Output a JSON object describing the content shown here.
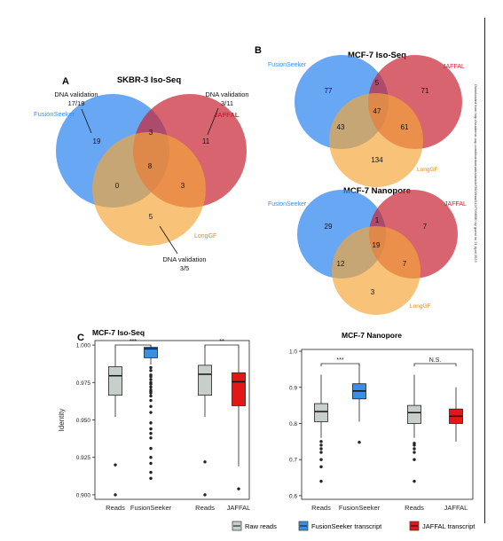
{
  "panel_a": {
    "letter": "A",
    "title": "SKBR-3 Iso-Seq",
    "labels": {
      "fusionseeker": "FusionSeeker",
      "jaffal": "JAFFAL",
      "longgf": "LongGF"
    },
    "counts": {
      "fs_only": "19",
      "fs_jaffal": "3",
      "jaffal_only": "11",
      "all": "8",
      "fs_longgf": "0",
      "jaffal_longgf": "3",
      "longgf_only": "5"
    },
    "callouts": [
      {
        "text": "DNA validation",
        "value": "17/19"
      },
      {
        "text": "DNA validation",
        "value": "3/11"
      },
      {
        "text": "DNA validation",
        "value": "3/5"
      }
    ]
  },
  "panel_b": {
    "letter": "B",
    "top": {
      "title": "MCF-7 Iso-Seq",
      "labels": {
        "fusionseeker": "FusionSeeker",
        "jaffal": "JAFFAL",
        "longgf": "LongGF"
      },
      "counts": {
        "fs_only": "77",
        "fs_jaffal": "5",
        "jaffal_only": "71",
        "all": "47",
        "fs_longgf": "43",
        "jaffal_longgf": "61",
        "longgf_only": "134"
      }
    },
    "bottom": {
      "title": "MCF-7 Nanopore",
      "labels": {
        "fusionseeker": "FusionSeeker",
        "jaffal": "JAFFAL",
        "longgf": "LongGF"
      },
      "counts": {
        "fs_only": "29",
        "fs_jaffal": "1",
        "jaffal_only": "7",
        "all": "19",
        "fs_longgf": "12",
        "jaffal_longgf": "7",
        "longgf_only": "3"
      }
    }
  },
  "side_note": "Downloaded from http://academic.oup.com/bioinformatics/article/39/3/btad112/7058080 by guest on 21 April 2023",
  "panel_c": {
    "letter": "C",
    "legend": [
      {
        "label": "Raw reads",
        "color": "#c8cec9"
      },
      {
        "label": "FusionSeeker transcript",
        "color": "#3a8ee6"
      },
      {
        "label": "JAFFAL transcript",
        "color": "#e01818"
      }
    ]
  },
  "colors": {
    "fusionseeker": "#3d8ef0",
    "jaffal": "#c82838",
    "longgf": "#f5a53a",
    "raw": "#c8cec9",
    "fs_box": "#3a8ee6",
    "jaffal_box": "#e01818"
  },
  "chart_data": [
    {
      "type": "box",
      "title": "MCF-7 Iso-Seq",
      "ylabel": "Identity",
      "ylim": [
        0.897,
        1.003
      ],
      "yticks": [
        0.9,
        0.925,
        0.95,
        0.975,
        1.0
      ],
      "ytick_labels": [
        "0.900",
        "0.925",
        "0.950",
        "0.975",
        "1.000"
      ],
      "categories": [
        "Reads",
        "FusionSeeker",
        "Reads",
        "JAFFAL"
      ],
      "series": [
        {
          "fill": "#c8cec9",
          "whisker_low": 0.952,
          "q1": 0.9665,
          "median": 0.9795,
          "q3": 0.9855,
          "whisker_high": 0.999,
          "outliers_low": [
            0.9,
            0.92
          ]
        },
        {
          "fill": "#3a8ee6",
          "whisker_low": 0.987,
          "q1": 0.9915,
          "median": 0.9975,
          "q3": 0.9985,
          "whisker_high": 1.0,
          "outliers_low": [
            0.911,
            0.915,
            0.921,
            0.925,
            0.931,
            0.938,
            0.941,
            0.944,
            0.948,
            0.955,
            0.959,
            0.963,
            0.966,
            0.968,
            0.969,
            0.97,
            0.972,
            0.974,
            0.975,
            0.977,
            0.979,
            0.98,
            0.983,
            0.985
          ]
        },
        {
          "fill": "#c8cec9",
          "whisker_low": 0.952,
          "q1": 0.9665,
          "median": 0.9805,
          "q3": 0.9865,
          "whisker_high": 1.0,
          "outliers_low": [
            0.9,
            0.922
          ]
        },
        {
          "fill": "#e01818",
          "whisker_low": 0.919,
          "q1": 0.9595,
          "median": 0.9755,
          "q3": 0.9815,
          "whisker_high": 0.999,
          "outliers_low": [
            0.904
          ]
        }
      ],
      "significance": [
        {
          "pair": [
            0,
            1
          ],
          "label": "***"
        },
        {
          "pair": [
            2,
            3
          ],
          "label": "**"
        }
      ]
    },
    {
      "type": "box",
      "title": "MCF-7 Nanopore",
      "ylabel": "",
      "ylim": [
        0.59,
        1.005
      ],
      "yticks": [
        0.6,
        0.7,
        0.8,
        0.9,
        1.0
      ],
      "ytick_labels": [
        "0.6",
        "0.7",
        "0.8",
        "0.9",
        "1.0"
      ],
      "categories": [
        "Reads",
        "FusionSeeker",
        "Reads",
        "JAFFAL"
      ],
      "series": [
        {
          "fill": "#c8cec9",
          "whisker_low": 0.76,
          "q1": 0.805,
          "median": 0.833,
          "q3": 0.855,
          "whisker_high": 0.935,
          "outliers_low": [
            0.64,
            0.68,
            0.7,
            0.72,
            0.73,
            0.74,
            0.75
          ]
        },
        {
          "fill": "#3a8ee6",
          "whisker_low": 0.805,
          "q1": 0.868,
          "median": 0.89,
          "q3": 0.91,
          "whisker_high": 0.965,
          "outliers_low": [
            0.748
          ]
        },
        {
          "fill": "#c8cec9",
          "whisker_low": 0.76,
          "q1": 0.8,
          "median": 0.83,
          "q3": 0.85,
          "whisker_high": 0.935,
          "outliers_low": [
            0.64,
            0.7,
            0.72,
            0.73,
            0.74,
            0.745
          ]
        },
        {
          "fill": "#e01818",
          "whisker_low": 0.75,
          "q1": 0.8,
          "median": 0.82,
          "q3": 0.84,
          "whisker_high": 0.9,
          "outliers_low": []
        }
      ],
      "significance": [
        {
          "pair": [
            0,
            1
          ],
          "label": "***"
        },
        {
          "pair": [
            2,
            3
          ],
          "label": "N.S."
        }
      ]
    }
  ]
}
